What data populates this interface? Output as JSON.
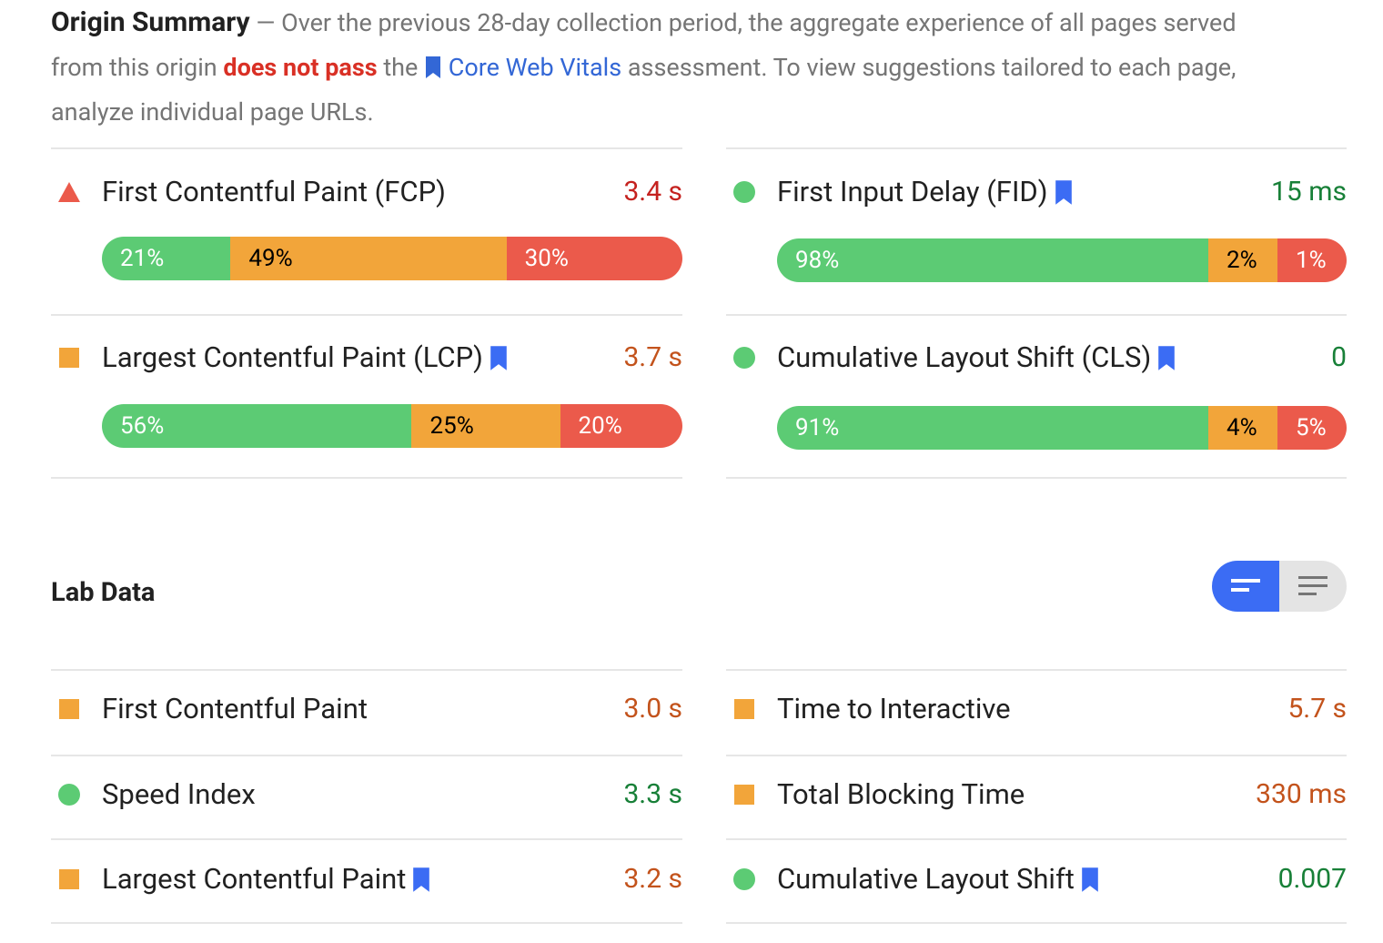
{
  "header": {
    "title": "Origin Summary",
    "separator": "—",
    "text_before": "Over the previous 28-day collection period, the aggregate experience of all pages served from this origin",
    "verdict": "does not pass",
    "text_mid": "the",
    "link": "Core Web Vitals",
    "text_after": "assessment. To view suggestions tailored to each page, analyze individual page URLs."
  },
  "field_metrics": [
    {
      "label": "First Contentful Paint (FCP)",
      "value": "3.4 s",
      "icon": "triangle",
      "color": "#eb5a4b",
      "text_color": "#c5221f",
      "bookmark": false,
      "distribution": [
        {
          "value": 21,
          "label": "21%"
        },
        {
          "value": 49,
          "label": "49%"
        },
        {
          "value": 30,
          "label": "30%"
        }
      ]
    },
    {
      "label": "First Input Delay (FID)",
      "value": "15 ms",
      "icon": "circle",
      "color": "#5ccb74",
      "text_color": "#188038",
      "bookmark": true,
      "distribution": [
        {
          "value": 98,
          "label": "98%"
        },
        {
          "value": 2,
          "label": "2%"
        },
        {
          "value": 1,
          "label": "1%"
        }
      ]
    },
    {
      "label": "Largest Contentful Paint (LCP)",
      "value": "3.7 s",
      "icon": "square",
      "color": "#f2a53a",
      "text_color": "#c3531c",
      "bookmark": true,
      "distribution": [
        {
          "value": 56,
          "label": "56%"
        },
        {
          "value": 25,
          "label": "25%"
        },
        {
          "value": 20,
          "label": "20%"
        }
      ]
    },
    {
      "label": "Cumulative Layout Shift (CLS)",
      "value": "0",
      "icon": "circle",
      "color": "#5ccb74",
      "text_color": "#188038",
      "bookmark": true,
      "distribution": [
        {
          "value": 91,
          "label": "91%"
        },
        {
          "value": 4,
          "label": "4%"
        },
        {
          "value": 5,
          "label": "5%"
        }
      ]
    }
  ],
  "distribution_colors": [
    "#5ccb74",
    "#f2a53a",
    "#eb5a4b"
  ],
  "lab": {
    "title": "Lab Data",
    "metrics": [
      {
        "label": "First Contentful Paint",
        "value": "3.0 s",
        "icon": "square",
        "color": "#f2a53a",
        "text_color": "#c3531c",
        "bookmark": false
      },
      {
        "label": "Time to Interactive",
        "value": "5.7 s",
        "icon": "square",
        "color": "#f2a53a",
        "text_color": "#c3531c",
        "bookmark": false
      },
      {
        "label": "Speed Index",
        "value": "3.3 s",
        "icon": "circle",
        "color": "#5ccb74",
        "text_color": "#188038",
        "bookmark": false
      },
      {
        "label": "Total Blocking Time",
        "value": "330 ms",
        "icon": "square",
        "color": "#f2a53a",
        "text_color": "#c3531c",
        "bookmark": false
      },
      {
        "label": "Largest Contentful Paint",
        "value": "3.2 s",
        "icon": "square",
        "color": "#f2a53a",
        "text_color": "#c3531c",
        "bookmark": true
      },
      {
        "label": "Cumulative Layout Shift",
        "value": "0.007",
        "icon": "circle",
        "color": "#5ccb74",
        "text_color": "#188038",
        "bookmark": true
      }
    ]
  }
}
